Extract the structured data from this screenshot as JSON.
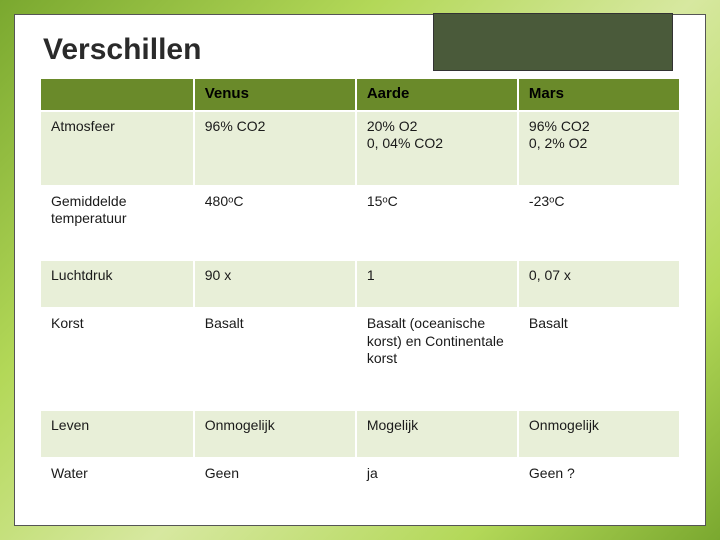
{
  "slide": {
    "title": "Verschillen",
    "background_gradient": [
      "#7aa82f",
      "#b3d858",
      "#d7e8a0"
    ],
    "header_block_color": "#4a5a3a"
  },
  "table": {
    "header_bg": "#6a8a2a",
    "row_odd_bg": "#e8efd8",
    "row_even_bg": "#ffffff",
    "columns": [
      "",
      "Venus",
      "Aarde",
      "Mars"
    ],
    "rows": [
      {
        "label": "Atmosfeer",
        "cells": [
          "96% CO2",
          "20% O2\n0, 04% CO2",
          "96% CO2\n0, 2% O2"
        ]
      },
      {
        "label": "Gemiddelde temperatuur",
        "cells": [
          "480ᵒC",
          "15ᵒC",
          "-23ᵒC"
        ]
      },
      {
        "label": "Luchtdruk",
        "cells": [
          "90 x",
          "1",
          "0, 07 x"
        ]
      },
      {
        "label": "Korst",
        "cells": [
          "Basalt",
          "Basalt (oceanische korst) en Continentale korst",
          "Basalt"
        ]
      },
      {
        "label": "Leven",
        "cells": [
          "Onmogelijk",
          "Mogelijk",
          "Onmogelijk"
        ]
      },
      {
        "label": "Water",
        "cells": [
          "Geen",
          "ja",
          "Geen ?"
        ]
      }
    ]
  }
}
